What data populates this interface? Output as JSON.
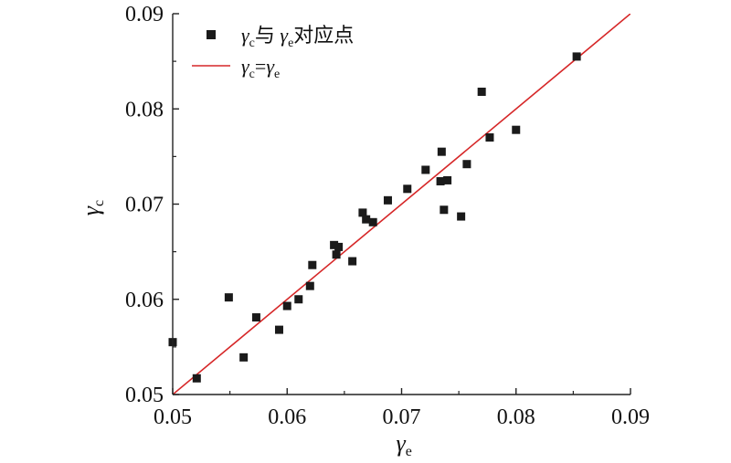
{
  "chart_data": {
    "type": "scatter",
    "xlabel": "γ",
    "xlabel_sub": "e",
    "ylabel": "γ",
    "ylabel_sub": "c",
    "xlim": [
      0.05,
      0.09
    ],
    "ylim": [
      0.05,
      0.09
    ],
    "xticks": [
      "0.05",
      "0.06",
      "0.07",
      "0.08",
      "0.09"
    ],
    "yticks": [
      "0.05",
      "0.06",
      "0.07",
      "0.08",
      "0.09"
    ],
    "grid": false,
    "legend_position": "top-left",
    "legend": [
      {
        "label_parts": [
          "γ",
          "c",
          "与 ",
          "γ",
          "e",
          "对应点"
        ],
        "marker": "square",
        "color": "#1a1a1a"
      },
      {
        "label_parts": [
          "γ",
          "c",
          "=",
          "γ",
          "e"
        ],
        "marker": "line",
        "color": "#d62728"
      }
    ],
    "reference_line": {
      "x": [
        0.05,
        0.09
      ],
      "y": [
        0.05,
        0.09
      ],
      "color": "#d62728"
    },
    "series": [
      {
        "marker": "square",
        "color": "#1a1a1a",
        "points": [
          [
            0.05,
            0.0555
          ],
          [
            0.0521,
            0.0517
          ],
          [
            0.0549,
            0.0602
          ],
          [
            0.0562,
            0.0539
          ],
          [
            0.0573,
            0.0581
          ],
          [
            0.0593,
            0.0568
          ],
          [
            0.06,
            0.0593
          ],
          [
            0.061,
            0.06
          ],
          [
            0.062,
            0.0614
          ],
          [
            0.0622,
            0.0636
          ],
          [
            0.0641,
            0.0657
          ],
          [
            0.0643,
            0.0647
          ],
          [
            0.0645,
            0.0655
          ],
          [
            0.0657,
            0.064
          ],
          [
            0.0666,
            0.0691
          ],
          [
            0.0669,
            0.0684
          ],
          [
            0.0675,
            0.0681
          ],
          [
            0.0688,
            0.0704
          ],
          [
            0.0705,
            0.0716
          ],
          [
            0.0721,
            0.0736
          ],
          [
            0.0734,
            0.0724
          ],
          [
            0.0735,
            0.0755
          ],
          [
            0.0737,
            0.0694
          ],
          [
            0.074,
            0.0725
          ],
          [
            0.0752,
            0.0687
          ],
          [
            0.0757,
            0.0742
          ],
          [
            0.077,
            0.0818
          ],
          [
            0.0777,
            0.077
          ],
          [
            0.08,
            0.0778
          ],
          [
            0.0853,
            0.0855
          ]
        ]
      }
    ]
  }
}
